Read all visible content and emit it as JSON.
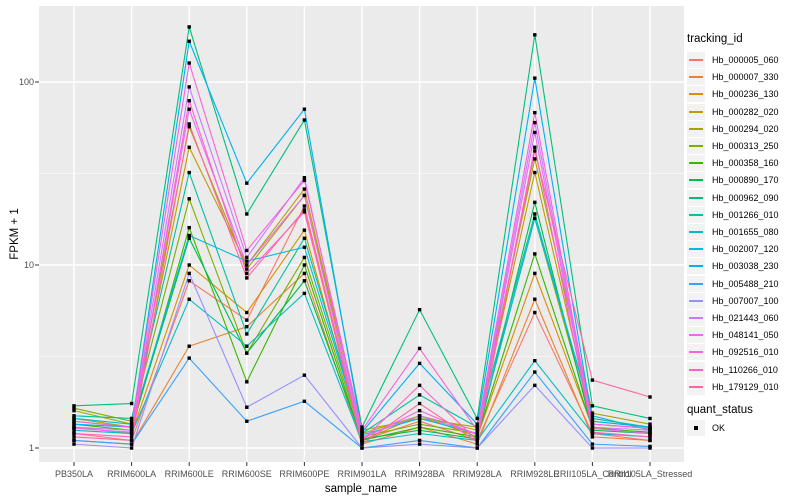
{
  "chart_data": {
    "type": "line",
    "title": "",
    "xlabel": "sample_name",
    "ylabel": "FPKM + 1",
    "yscale": "log10",
    "ytick_labels": [
      "100",
      "10",
      "1"
    ],
    "ytick_values": [
      100,
      10,
      1
    ],
    "yminor_values": [
      31.62,
      3.162
    ],
    "ylim": [
      0.84,
      260
    ],
    "grid": true,
    "legend_position": "right",
    "categories": [
      "PB350LA",
      "RRIM600LA",
      "RRIM600LE",
      "RRIM600SE",
      "RRIM600PE",
      "RRIM901LA",
      "RRIM928BA",
      "RRIM928LA",
      "RRIM928LE",
      "RRII105LA_Control",
      "RRII105LA_Stressed"
    ],
    "series": [
      {
        "name": "Hb_000005_060",
        "color": "#F8766D",
        "values": [
          1.2,
          1.1,
          8.2,
          5.0,
          21,
          1.1,
          1.4,
          1.1,
          5.5,
          1.2,
          1.1
        ]
      },
      {
        "name": "Hb_000007_330",
        "color": "#EA8331",
        "values": [
          1.1,
          1.05,
          3.6,
          4.6,
          9,
          1.05,
          1.3,
          1.05,
          6.5,
          1.15,
          1.1
        ]
      },
      {
        "name": "Hb_000236_130",
        "color": "#D89000",
        "values": [
          1.3,
          1.2,
          10,
          5.5,
          15.5,
          1.1,
          1.5,
          1.15,
          9,
          1.3,
          1.2
        ]
      },
      {
        "name": "Hb_000282_020",
        "color": "#C09B00",
        "values": [
          1.45,
          1.3,
          44,
          10,
          26,
          1.2,
          1.5,
          1.25,
          32,
          1.4,
          1.3
        ]
      },
      {
        "name": "Hb_000294_020",
        "color": "#A3A500",
        "values": [
          1.6,
          1.35,
          57,
          9.5,
          24,
          1.25,
          1.45,
          1.3,
          38,
          1.55,
          1.35
        ]
      },
      {
        "name": "Hb_000313_250",
        "color": "#7CAE00",
        "values": [
          1.65,
          1.4,
          23,
          3.3,
          11,
          1.15,
          1.35,
          1.2,
          18,
          1.35,
          1.28
        ]
      },
      {
        "name": "Hb_000358_160",
        "color": "#39B600",
        "values": [
          1.35,
          1.25,
          16,
          2.3,
          10,
          1.1,
          1.3,
          1.15,
          11.5,
          1.28,
          1.22
        ]
      },
      {
        "name": "Hb_000890_170",
        "color": "#00BB4E",
        "values": [
          1.4,
          1.3,
          14,
          3.3,
          8.2,
          1.12,
          1.25,
          1.12,
          22,
          1.25,
          1.2
        ]
      },
      {
        "name": "Hb_000962_090",
        "color": "#00BF7D",
        "values": [
          1.7,
          1.75,
          200,
          19,
          62,
          1.3,
          5.7,
          1.45,
          181,
          1.7,
          1.45
        ]
      },
      {
        "name": "Hb_001266_010",
        "color": "#00C1A3",
        "values": [
          1.5,
          1.45,
          32,
          4.2,
          14,
          1.2,
          1.95,
          1.3,
          19,
          1.45,
          1.3
        ]
      },
      {
        "name": "Hb_001655_080",
        "color": "#00BFC4",
        "values": [
          1.25,
          1.2,
          6.5,
          3.6,
          7,
          1.08,
          1.2,
          1.1,
          3.0,
          1.2,
          1.15
        ]
      },
      {
        "name": "Hb_002007_120",
        "color": "#00BAE0",
        "values": [
          1.45,
          1.35,
          14.5,
          10.5,
          12.5,
          1.18,
          1.45,
          1.2,
          18,
          1.5,
          1.25
        ]
      },
      {
        "name": "Hb_003038_230",
        "color": "#00B0F6",
        "values": [
          1.35,
          1.3,
          167,
          28,
          71,
          1.22,
          2.9,
          1.35,
          105,
          1.4,
          1.3
        ]
      },
      {
        "name": "Hb_005488_210",
        "color": "#35A2FF",
        "values": [
          1.1,
          1.05,
          3.1,
          1.4,
          1.8,
          1.0,
          1.1,
          1.0,
          2.6,
          1.05,
          1.02
        ]
      },
      {
        "name": "Hb_007007_100",
        "color": "#9590FF",
        "values": [
          1.05,
          1.0,
          9,
          1.67,
          2.5,
          1.0,
          1.05,
          1.0,
          2.2,
          1.0,
          1.0
        ]
      },
      {
        "name": "Hb_021443_060",
        "color": "#C77CFF",
        "values": [
          1.3,
          1.25,
          94,
          11,
          30,
          1.15,
          1.5,
          1.2,
          60,
          1.3,
          1.25
        ]
      },
      {
        "name": "Hb_048141_050",
        "color": "#E76BF3",
        "values": [
          1.28,
          1.22,
          71,
          10,
          24,
          1.12,
          1.6,
          1.18,
          53,
          1.28,
          1.2
        ]
      },
      {
        "name": "Hb_092516_010",
        "color": "#FA62DB",
        "values": [
          1.4,
          1.3,
          127,
          12,
          29,
          1.25,
          3.5,
          1.25,
          68,
          1.35,
          1.28
        ]
      },
      {
        "name": "Hb_110266_010",
        "color": "#FF61CC",
        "values": [
          1.2,
          1.15,
          79,
          9,
          19.5,
          1.1,
          2.2,
          1.1,
          44,
          1.22,
          1.15
        ]
      },
      {
        "name": "Hb_179129_010",
        "color": "#FF67A4",
        "values": [
          1.15,
          1.1,
          59,
          8.5,
          20,
          1.05,
          1.75,
          1.08,
          42,
          2.35,
          1.9
        ]
      }
    ],
    "legend": {
      "tracking_title": "tracking_id",
      "quant_title": "quant_status",
      "quant_items": [
        {
          "label": "OK",
          "marker": "black-square"
        }
      ]
    },
    "colors": {
      "panel_bg": "#EBEBEB",
      "grid_major": "#FFFFFF",
      "grid_minor": "#F5F5F5",
      "tick_text": "#4D4D4D",
      "tick_mark": "#333333",
      "marker": "#000000",
      "legend_key_bg": "#F2F2F2"
    }
  }
}
